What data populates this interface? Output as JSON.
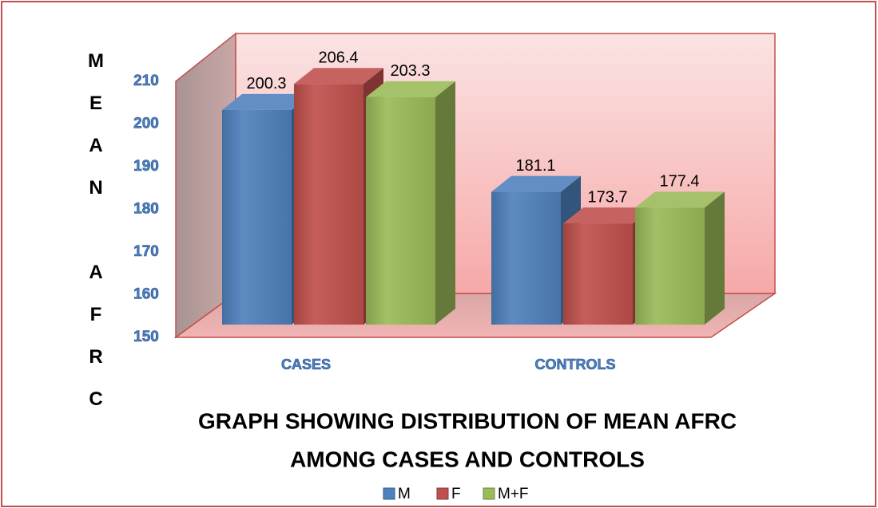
{
  "chart_data": {
    "type": "bar3d",
    "title": [
      "GRAPH SHOWING DISTRIBUTION OF MEAN AFRC",
      "AMONG CASES AND CONTROLS"
    ],
    "y_label": "MEAN AFRC",
    "categories": [
      "CASES",
      "CONTROLS"
    ],
    "series": [
      {
        "name": "M",
        "color": "#4f81bd",
        "values": [
          200.3,
          181.1
        ]
      },
      {
        "name": "F",
        "color": "#c0504d",
        "values": [
          206.4,
          173.7
        ]
      },
      {
        "name": "M+F",
        "color": "#9bbb59",
        "values": [
          203.3,
          177.4
        ]
      }
    ],
    "ylim": [
      150,
      210
    ],
    "yticks": [
      150,
      160,
      170,
      180,
      190,
      200,
      210
    ],
    "legend": "bottom"
  }
}
